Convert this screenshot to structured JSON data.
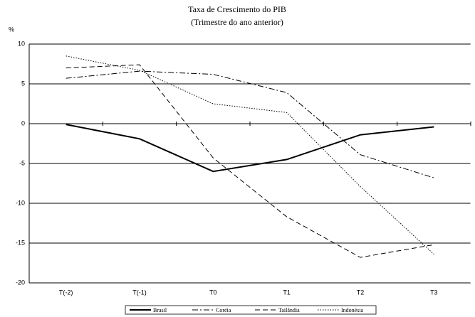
{
  "chart_data": {
    "type": "line",
    "title": "Taxa de Crescimento do PIB",
    "subtitle": "(Trimestre do ano anterior)",
    "y_label": "%",
    "categories": [
      "T(-2)",
      "T(-1)",
      "T0",
      "T1",
      "T2",
      "T3"
    ],
    "series": [
      {
        "name": "Brasil",
        "color": "#000000",
        "style": "solid",
        "values": [
          -0.1,
          -1.9,
          -6.0,
          -4.5,
          -1.4,
          -0.4
        ]
      },
      {
        "name": "Coréia",
        "color": "#000000",
        "style": "dashdot",
        "values": [
          5.7,
          6.6,
          6.2,
          3.9,
          -3.9,
          -6.8
        ]
      },
      {
        "name": "Tailândia",
        "color": "#000000",
        "style": "dashed",
        "values": [
          7.0,
          7.4,
          -4.3,
          -11.7,
          -16.8,
          -15.2
        ]
      },
      {
        "name": "Indonésia",
        "color": "#000000",
        "style": "dotted",
        "values": [
          8.5,
          6.7,
          2.5,
          1.4,
          -7.9,
          -16.4
        ]
      }
    ],
    "ylim": [
      -20,
      10
    ],
    "yticks": [
      -20,
      -15,
      -10,
      -5,
      0,
      5,
      10
    ],
    "grid": true,
    "legend": "bottom"
  }
}
